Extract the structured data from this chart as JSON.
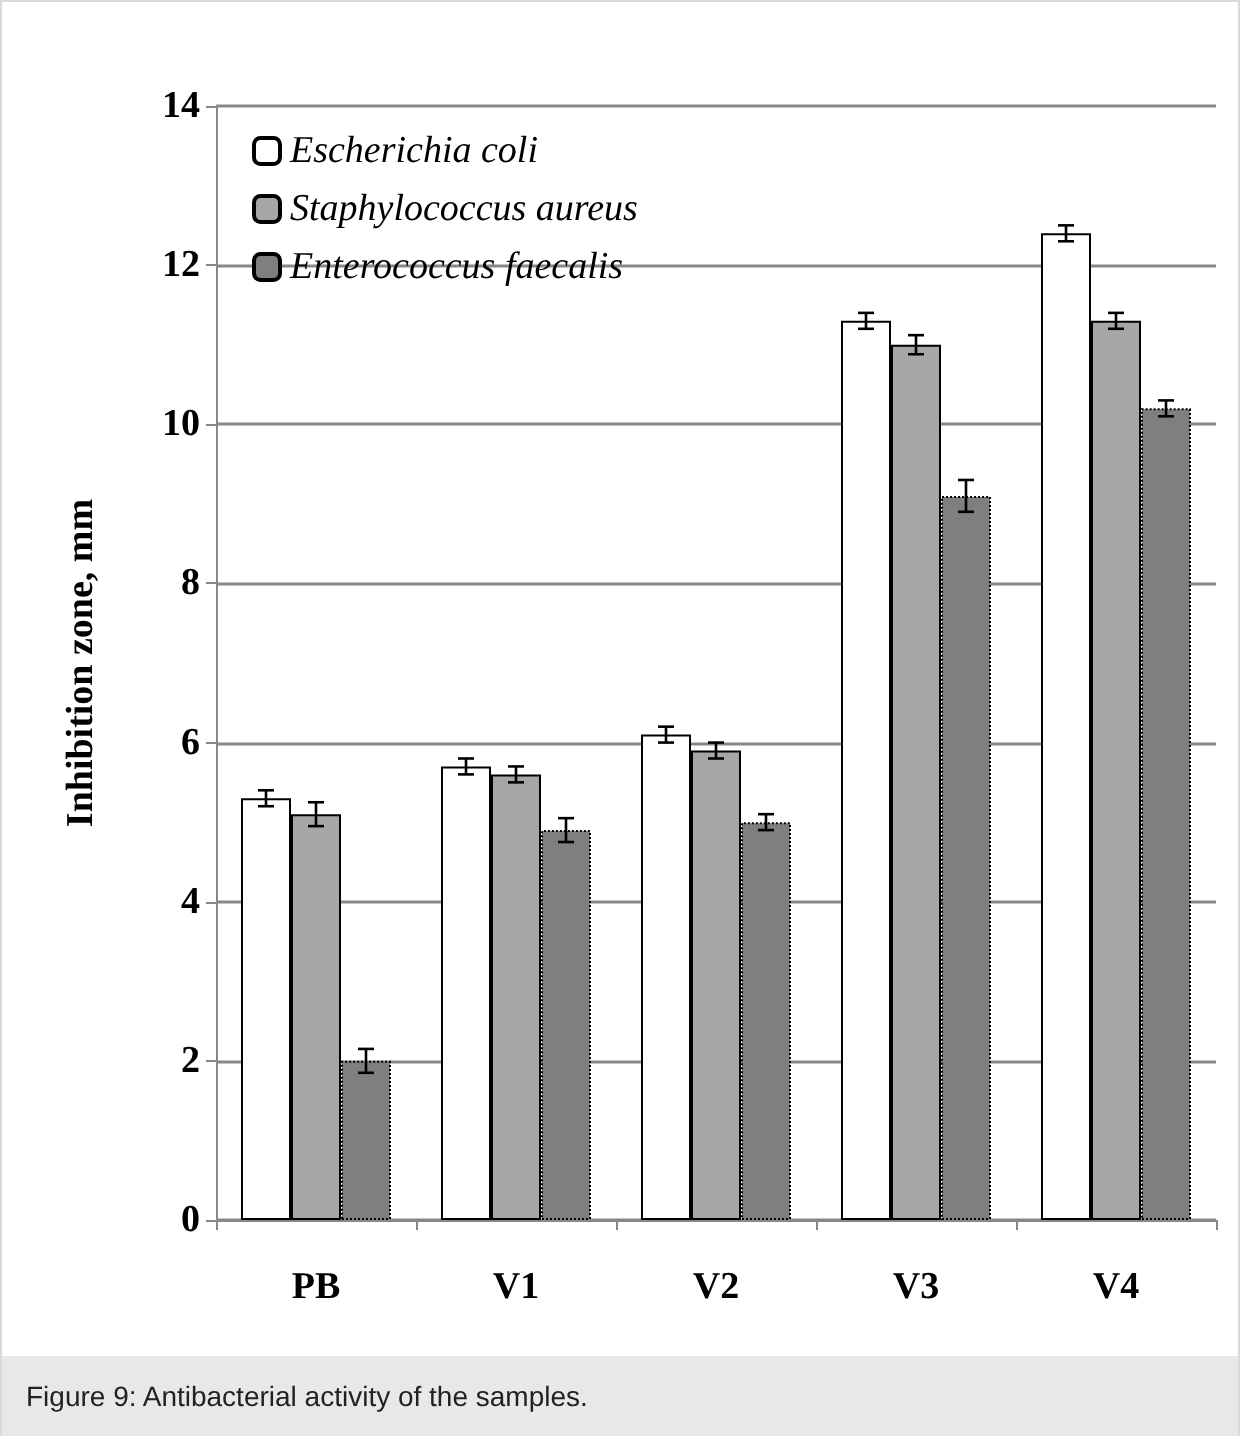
{
  "chart_data": {
    "type": "bar",
    "ylabel": "Inhibition zone, mm",
    "categories": [
      "PB",
      "V1",
      "V2",
      "V3",
      "V4"
    ],
    "series": [
      {
        "name": "Escherichia coli",
        "color": "#ffffff",
        "values": [
          5.3,
          5.7,
          6.1,
          11.3,
          12.4
        ],
        "errors": [
          0.1,
          0.1,
          0.1,
          0.1,
          0.1
        ]
      },
      {
        "name": "Staphylococcus aureus",
        "color": "#a6a6a6",
        "values": [
          5.1,
          5.6,
          5.9,
          11.0,
          11.3
        ],
        "errors": [
          0.15,
          0.1,
          0.1,
          0.12,
          0.1
        ]
      },
      {
        "name": "Enterococcus faecalis",
        "color": "#7f7f7f",
        "values": [
          2.0,
          4.9,
          5.0,
          9.1,
          10.2
        ],
        "errors": [
          0.15,
          0.15,
          0.1,
          0.2,
          0.1
        ],
        "line_style": "dotted"
      }
    ],
    "ylim": [
      0,
      14
    ],
    "yticks": [
      0,
      2,
      4,
      6,
      8,
      10,
      12,
      14
    ],
    "grid": "y",
    "legend": "top left",
    "annotations": [
      "Figure 9: Antibacterial activity of the samples."
    ]
  }
}
